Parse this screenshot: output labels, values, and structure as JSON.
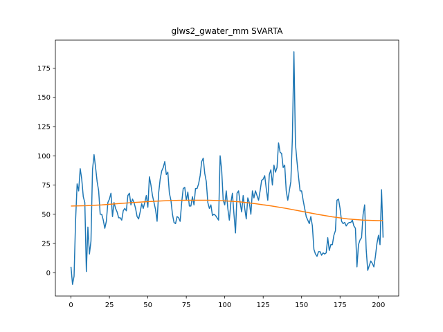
{
  "chart_data": {
    "type": "line",
    "title": "glws2_gwater_mm SVARTA",
    "xlim": [
      -10.15,
      213.15
    ],
    "ylim": [
      -19.95,
      198.95
    ],
    "xticks": [
      0,
      25,
      50,
      75,
      100,
      125,
      150,
      175,
      200
    ],
    "yticks": [
      0,
      25,
      50,
      75,
      100,
      125,
      150,
      175
    ],
    "series": [
      {
        "color": "#1f77b4",
        "x": [
          0,
          1,
          2,
          3,
          4,
          5,
          6,
          7,
          8,
          9,
          10,
          11,
          12,
          13,
          14,
          15,
          16,
          17,
          18,
          19,
          20,
          21,
          22,
          23,
          24,
          25,
          26,
          27,
          28,
          29,
          30,
          31,
          32,
          33,
          34,
          35,
          36,
          37,
          38,
          39,
          40,
          41,
          42,
          43,
          44,
          45,
          46,
          47,
          48,
          49,
          50,
          51,
          52,
          53,
          54,
          55,
          56,
          57,
          58,
          59,
          60,
          61,
          62,
          63,
          64,
          65,
          66,
          67,
          68,
          69,
          70,
          71,
          72,
          73,
          74,
          75,
          76,
          77,
          78,
          79,
          80,
          81,
          82,
          83,
          84,
          85,
          86,
          87,
          88,
          89,
          90,
          91,
          92,
          93,
          94,
          95,
          96,
          97,
          98,
          99,
          100,
          101,
          102,
          103,
          104,
          105,
          106,
          107,
          108,
          109,
          110,
          111,
          112,
          113,
          114,
          115,
          116,
          117,
          118,
          119,
          120,
          121,
          122,
          123,
          124,
          125,
          126,
          127,
          128,
          129,
          130,
          131,
          132,
          133,
          134,
          135,
          136,
          137,
          138,
          139,
          140,
          141,
          142,
          143,
          144,
          145,
          146,
          147,
          148,
          149,
          150,
          151,
          152,
          153,
          154,
          155,
          156,
          157,
          158,
          159,
          160,
          161,
          162,
          163,
          164,
          165,
          166,
          167,
          168,
          169,
          170,
          171,
          172,
          173,
          174,
          175,
          176,
          177,
          178,
          179,
          180,
          181,
          182,
          183,
          184,
          185,
          186,
          187,
          188,
          189,
          190,
          191,
          192,
          193,
          194,
          195,
          196,
          197,
          198,
          199,
          200,
          201,
          202,
          203
        ],
        "values": [
          5,
          -10,
          -3,
          45,
          76,
          70,
          89,
          80,
          65,
          60,
          1,
          39,
          16,
          27,
          88,
          101,
          90,
          78,
          70,
          50,
          50,
          45,
          38,
          44,
          60,
          63,
          68,
          48,
          60,
          55,
          52,
          47,
          47,
          45,
          53,
          55,
          53,
          66,
          68,
          58,
          63,
          60,
          55,
          48,
          46,
          52,
          59,
          55,
          60,
          66,
          56,
          82,
          75,
          66,
          60,
          54,
          44,
          68,
          80,
          87,
          90,
          95,
          84,
          86,
          68,
          62,
          50,
          43,
          42,
          48,
          47,
          44,
          60,
          72,
          73,
          62,
          69,
          57,
          57,
          65,
          58,
          72,
          72,
          76,
          83,
          95,
          98,
          85,
          78,
          60,
          55,
          58,
          49,
          50,
          49,
          47,
          45,
          100,
          88,
          62,
          58,
          70,
          55,
          45,
          60,
          68,
          50,
          34,
          68,
          70,
          60,
          52,
          66,
          55,
          46,
          64,
          60,
          50,
          70,
          64,
          70,
          66,
          62,
          70,
          79,
          80,
          83,
          72,
          62,
          84,
          88,
          75,
          92,
          86,
          90,
          111,
          103,
          102,
          90,
          92,
          70,
          62,
          70,
          78,
          115,
          189,
          110,
          95,
          82,
          70,
          70,
          62,
          55,
          48,
          45,
          42,
          48,
          40,
          20,
          16,
          14,
          18,
          18,
          15,
          17,
          16,
          17,
          30,
          19,
          24,
          24,
          32,
          36,
          62,
          63,
          55,
          44,
          42,
          43,
          40,
          42,
          43,
          43,
          45,
          40,
          38,
          5,
          24,
          28,
          30,
          50,
          58,
          20,
          2,
          6,
          10,
          8,
          5,
          14,
          25,
          32,
          24,
          71,
          30
        ]
      },
      {
        "color": "#ff7f0e",
        "x": [
          0,
          10,
          20,
          30,
          40,
          50,
          60,
          70,
          80,
          90,
          100,
          110,
          120,
          130,
          140,
          150,
          160,
          170,
          180,
          190,
          200,
          203
        ],
        "values": [
          57,
          57.3,
          58,
          59,
          60,
          60.8,
          61.5,
          61.9,
          62,
          62,
          61.5,
          60.6,
          59,
          57.2,
          55,
          52.5,
          50,
          47.8,
          46,
          45,
          44.5,
          44.5
        ]
      }
    ]
  }
}
